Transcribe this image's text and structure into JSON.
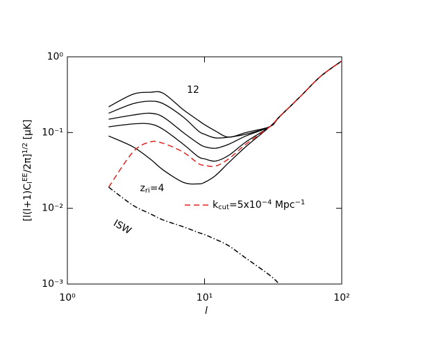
{
  "chart_data": {
    "type": "line",
    "x_label": "l",
    "y_label": [
      {
        "text": "[l(l+1)C"
      },
      {
        "text": "l",
        "shift": "sub"
      },
      {
        "text": "EE",
        "shift": "sup"
      },
      {
        "text": "/2π]"
      },
      {
        "text": "1/2",
        "shift": "sup"
      },
      {
        "text": " [μK]"
      }
    ],
    "log_x": true,
    "log_y": true,
    "xlim": [
      1,
      100
    ],
    "ylim": [
      0.001,
      1
    ],
    "xticks": [
      {
        "value": 1,
        "label": "10⁰"
      },
      {
        "value": 10,
        "label": "10¹"
      },
      {
        "value": 100,
        "label": "10²"
      }
    ],
    "yticks": [
      {
        "value": 0.001,
        "label": "10⁻³"
      },
      {
        "value": 0.01,
        "label": "10⁻²"
      },
      {
        "value": 0.1,
        "label": "10⁻¹"
      },
      {
        "value": 1,
        "label": "10⁰"
      }
    ],
    "x": [
      2,
      3,
      4,
      5,
      7,
      9,
      10,
      12,
      15,
      20,
      30,
      35,
      50,
      70,
      100
    ],
    "series": [
      {
        "color": "#000000",
        "style": "solid",
        "values": [
          0.219,
          0.32,
          0.34,
          0.33,
          0.2,
          0.145,
          0.127,
          0.105,
          0.087,
          0.1,
          0.12,
          0.16,
          0.3,
          0.55,
          0.88
        ]
      },
      {
        "color": "#000000",
        "style": "solid",
        "values": [
          0.18,
          0.24,
          0.26,
          0.24,
          0.16,
          0.105,
          0.095,
          0.085,
          0.087,
          0.095,
          0.12,
          0.16,
          0.3,
          0.55,
          0.88
        ]
      },
      {
        "color": "#000000",
        "style": "solid",
        "values": [
          0.15,
          0.17,
          0.18,
          0.16,
          0.1,
          0.072,
          0.065,
          0.062,
          0.07,
          0.09,
          0.12,
          0.16,
          0.3,
          0.55,
          0.88
        ]
      },
      {
        "color": "#000000",
        "style": "solid",
        "values": [
          0.119,
          0.13,
          0.13,
          0.11,
          0.07,
          0.048,
          0.045,
          0.042,
          0.05,
          0.075,
          0.12,
          0.16,
          0.3,
          0.55,
          0.88
        ]
      },
      {
        "color": "#000000",
        "style": "solid",
        "values": [
          0.09,
          0.065,
          0.045,
          0.032,
          0.022,
          0.021,
          0.022,
          0.027,
          0.04,
          0.065,
          0.12,
          0.16,
          0.3,
          0.55,
          0.88
        ]
      },
      {
        "name": [
          {
            "text": "k"
          },
          {
            "text": "cut",
            "shift": "sub"
          },
          {
            "text": "=5x10"
          },
          {
            "text": "−4",
            "shift": "sup"
          },
          {
            "text": " Mpc"
          },
          {
            "text": "−1",
            "shift": "sup"
          }
        ],
        "color": "#e0201b",
        "style": "dashed",
        "values": [
          0.019,
          0.055,
          0.075,
          0.072,
          0.055,
          0.039,
          0.037,
          0.036,
          0.045,
          0.07,
          0.12,
          0.16,
          0.3,
          0.55,
          0.88
        ]
      },
      {
        "color": "#000000",
        "style": "dashdot",
        "values": [
          0.019,
          0.011,
          0.0085,
          0.007,
          0.0057,
          0.0048,
          0.0045,
          0.0039,
          0.0032,
          0.0022,
          0.0013,
          0.001,
          null,
          null,
          null
        ]
      }
    ],
    "annotations": [
      [
        {
          "text": "12"
        }
      ],
      [
        {
          "text": "z"
        },
        {
          "text": "ri",
          "shift": "sub"
        },
        {
          "text": "=4"
        }
      ],
      [
        {
          "text": "ISW"
        }
      ]
    ]
  }
}
